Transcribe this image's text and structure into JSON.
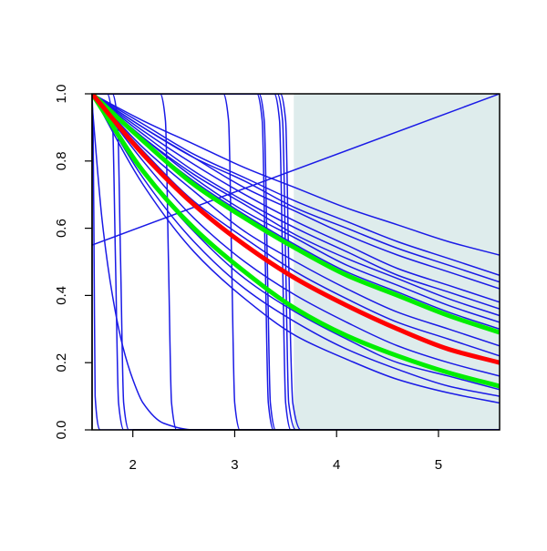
{
  "chart_data": {
    "type": "line",
    "xlim": [
      1.6,
      5.6
    ],
    "ylim": [
      0,
      1
    ],
    "xticks": [
      2,
      3,
      4,
      5
    ],
    "yticks": [
      {
        "value": 0,
        "label": "0.0"
      },
      {
        "value": 0.2,
        "label": "0.2"
      },
      {
        "value": 0.4,
        "label": "0.4"
      },
      {
        "value": 0.6,
        "label": "0.6"
      },
      {
        "value": 0.8,
        "label": "0.8"
      },
      {
        "value": 1,
        "label": "1.0"
      }
    ],
    "shade": {
      "xlim": [
        3.58,
        5.6
      ],
      "color": "#deecec"
    },
    "series": [
      {
        "color": "#1a1ae6",
        "lw": 1.5,
        "x": [
          1.6,
          2.1,
          2.6,
          3.1,
          3.6,
          4.1,
          4.6,
          5.1,
          5.6
        ],
        "values": [
          1,
          0.92,
          0.85,
          0.78,
          0.72,
          0.66,
          0.61,
          0.56,
          0.52
        ]
      },
      {
        "color": "#1a1ae6",
        "lw": 1.5,
        "x": [
          1.6,
          2.1,
          2.6,
          3.1,
          3.6,
          4.1,
          4.6,
          5.1,
          5.6
        ],
        "values": [
          1,
          0.91,
          0.82,
          0.75,
          0.68,
          0.62,
          0.56,
          0.51,
          0.46
        ]
      },
      {
        "color": "#1a1ae6",
        "lw": 1.5,
        "x": [
          1.6,
          2.1,
          2.6,
          3.1,
          3.6,
          4.1,
          4.6,
          5.1,
          5.6
        ],
        "values": [
          1,
          0.9,
          0.81,
          0.74,
          0.66,
          0.6,
          0.54,
          0.49,
          0.44
        ]
      },
      {
        "color": "#1a1ae6",
        "lw": 1.5,
        "x": [
          1.6,
          2.1,
          2.6,
          3.1,
          3.6,
          4.1,
          4.6,
          5.1,
          5.6
        ],
        "values": [
          1,
          0.9,
          0.81,
          0.72,
          0.65,
          0.58,
          0.52,
          0.47,
          0.42
        ]
      },
      {
        "color": "#1a1ae6",
        "lw": 1.5,
        "x": [
          1.6,
          2.1,
          2.6,
          3.1,
          3.6,
          4.1,
          4.6,
          5.1,
          5.6
        ],
        "values": [
          1,
          0.89,
          0.79,
          0.7,
          0.62,
          0.55,
          0.48,
          0.43,
          0.38
        ]
      },
      {
        "color": "#1a1ae6",
        "lw": 1.5,
        "x": [
          1.6,
          2.1,
          2.6,
          3.1,
          3.6,
          4.1,
          4.6,
          5.1,
          5.6
        ],
        "values": [
          1,
          0.88,
          0.77,
          0.68,
          0.6,
          0.53,
          0.46,
          0.41,
          0.36
        ]
      },
      {
        "color": "#1a1ae6",
        "lw": 1.5,
        "x": [
          1.6,
          2.1,
          2.6,
          3.1,
          3.6,
          4.1,
          4.6,
          5.1,
          5.6
        ],
        "values": [
          1,
          0.87,
          0.76,
          0.67,
          0.58,
          0.51,
          0.45,
          0.39,
          0.34
        ]
      },
      {
        "color": "#1a1ae6",
        "lw": 1.5,
        "x": [
          1.6,
          2.1,
          2.6,
          3.1,
          3.6,
          4.1,
          4.6,
          5.1,
          5.6
        ],
        "values": [
          1,
          0.87,
          0.75,
          0.65,
          0.57,
          0.49,
          0.43,
          0.37,
          0.32
        ]
      },
      {
        "color": "#1a1ae6",
        "lw": 1.5,
        "x": [
          1.6,
          2.1,
          2.6,
          3.1,
          3.6,
          4.1,
          4.6,
          5.1,
          5.6
        ],
        "values": [
          1,
          0.86,
          0.74,
          0.64,
          0.55,
          0.47,
          0.41,
          0.35,
          0.3
        ]
      },
      {
        "color": "#1a1ae6",
        "lw": 1.5,
        "x": [
          1.6,
          2.1,
          2.6,
          3.1,
          3.6,
          4.1,
          4.6,
          5.1,
          5.6
        ],
        "values": [
          1,
          0.84,
          0.71,
          0.59,
          0.5,
          0.42,
          0.35,
          0.3,
          0.25
        ]
      },
      {
        "color": "#1a1ae6",
        "lw": 1.5,
        "x": [
          1.6,
          2.1,
          2.6,
          3.1,
          3.6,
          4.1,
          4.6,
          5.1,
          5.6
        ],
        "values": [
          1,
          0.83,
          0.68,
          0.57,
          0.47,
          0.39,
          0.32,
          0.27,
          0.22
        ]
      },
      {
        "color": "#1a1ae6",
        "lw": 1.5,
        "x": [
          1.6,
          2.1,
          2.6,
          3.1,
          3.6,
          4.1,
          4.6,
          5.1,
          5.6
        ],
        "values": [
          1,
          0.8,
          0.63,
          0.5,
          0.4,
          0.32,
          0.25,
          0.2,
          0.16
        ]
      },
      {
        "color": "#1a1ae6",
        "lw": 1.5,
        "x": [
          1.6,
          2.1,
          2.6,
          3.1,
          3.6,
          4.1,
          4.6,
          5.1,
          5.6
        ],
        "values": [
          1,
          0.77,
          0.59,
          0.45,
          0.35,
          0.27,
          0.2,
          0.16,
          0.12
        ]
      },
      {
        "color": "#1a1ae6",
        "lw": 1.5,
        "x": [
          1.6,
          2.1,
          2.6,
          3.1,
          3.6,
          4.1,
          4.6,
          5.1,
          5.6
        ],
        "values": [
          1,
          0.75,
          0.56,
          0.42,
          0.32,
          0.24,
          0.18,
          0.13,
          0.1
        ]
      },
      {
        "color": "#1a1ae6",
        "lw": 1.5,
        "x": [
          1.6,
          2.1,
          2.6,
          3.1,
          3.6,
          4.1,
          4.6,
          5.1,
          5.6
        ],
        "values": [
          1,
          0.73,
          0.53,
          0.39,
          0.28,
          0.21,
          0.15,
          0.11,
          0.08
        ]
      },
      {
        "color": "#1a1ae6",
        "lw": 1.5,
        "x": [
          1.6,
          5.6
        ],
        "values": [
          0.55,
          1
        ]
      },
      {
        "color": "#1a1ae6",
        "lw": 1.5,
        "x": [
          1.6,
          1.7,
          1.8,
          1.9,
          2.0,
          2.1,
          2.3,
          2.6,
          5.6
        ],
        "values": [
          0.97,
          0.62,
          0.4,
          0.25,
          0.15,
          0.08,
          0.02,
          0,
          0
        ]
      },
      {
        "color": "#1a1ae6",
        "lw": 1.5,
        "x": [
          1.6,
          1.61,
          1.62,
          1.63,
          1.68,
          5.6
        ],
        "values": [
          1,
          0.9,
          0.5,
          0.1,
          0,
          0
        ]
      },
      {
        "color": "#1a1ae6",
        "lw": 1.5,
        "x": [
          1.6,
          1.75,
          1.8,
          1.83,
          1.86,
          1.91,
          5.6
        ],
        "values": [
          1,
          1,
          0.92,
          0.5,
          0.08,
          0,
          0
        ]
      },
      {
        "color": "#1a1ae6",
        "lw": 1.5,
        "x": [
          1.6,
          1.8,
          1.85,
          1.88,
          1.91,
          1.96,
          5.6
        ],
        "values": [
          1,
          1,
          0.92,
          0.5,
          0.08,
          0,
          0
        ]
      },
      {
        "color": "#1a1ae6",
        "lw": 1.5,
        "x": [
          1.6,
          2.27,
          2.32,
          2.35,
          2.38,
          2.43,
          5.6
        ],
        "values": [
          1,
          1,
          0.92,
          0.5,
          0.08,
          0,
          0
        ]
      },
      {
        "color": "#1a1ae6",
        "lw": 1.5,
        "x": [
          1.6,
          2.89,
          2.94,
          2.97,
          3.0,
          3.05,
          5.6
        ],
        "values": [
          1,
          1,
          0.92,
          0.5,
          0.08,
          0,
          0
        ]
      },
      {
        "color": "#1a1ae6",
        "lw": 1.5,
        "x": [
          1.6,
          3.22,
          3.27,
          3.3,
          3.33,
          3.38,
          5.6
        ],
        "values": [
          1,
          1,
          0.92,
          0.5,
          0.08,
          0,
          0
        ]
      },
      {
        "color": "#1a1ae6",
        "lw": 1.5,
        "x": [
          1.6,
          3.24,
          3.29,
          3.32,
          3.35,
          3.4,
          5.6
        ],
        "values": [
          1,
          1,
          0.92,
          0.5,
          0.08,
          0,
          0
        ]
      },
      {
        "color": "#1a1ae6",
        "lw": 1.5,
        "x": [
          1.6,
          3.39,
          3.44,
          3.47,
          3.5,
          3.55,
          5.6
        ],
        "values": [
          1,
          1,
          0.92,
          0.5,
          0.08,
          0,
          0
        ]
      },
      {
        "color": "#1a1ae6",
        "lw": 1.5,
        "x": [
          1.6,
          3.42,
          3.47,
          3.5,
          3.53,
          3.6,
          5.6
        ],
        "values": [
          1,
          1,
          0.92,
          0.5,
          0.08,
          0,
          0
        ]
      },
      {
        "color": "#1a1ae6",
        "lw": 1.5,
        "x": [
          1.6,
          3.45,
          3.5,
          3.53,
          3.57,
          3.65,
          5.6
        ],
        "values": [
          1,
          1,
          0.92,
          0.5,
          0.08,
          0,
          0
        ]
      },
      {
        "color": "#00ee00",
        "lw": 5,
        "x": [
          1.6,
          2.1,
          2.6,
          3.1,
          3.6,
          4.1,
          4.6,
          5.1,
          5.6
        ],
        "values": [
          1,
          0.86,
          0.73,
          0.63,
          0.54,
          0.46,
          0.4,
          0.34,
          0.29
        ]
      },
      {
        "color": "#00ee00",
        "lw": 5,
        "x": [
          1.6,
          2.1,
          2.6,
          3.1,
          3.6,
          4.1,
          4.6,
          5.1,
          5.6
        ],
        "values": [
          1,
          0.77,
          0.6,
          0.47,
          0.36,
          0.28,
          0.22,
          0.17,
          0.13
        ]
      },
      {
        "color": "#ff0000",
        "lw": 5,
        "x": [
          1.6,
          2.1,
          2.6,
          3.1,
          3.6,
          4.1,
          4.6,
          5.1,
          5.6
        ],
        "values": [
          1,
          0.82,
          0.67,
          0.55,
          0.45,
          0.37,
          0.3,
          0.24,
          0.2
        ]
      }
    ]
  }
}
